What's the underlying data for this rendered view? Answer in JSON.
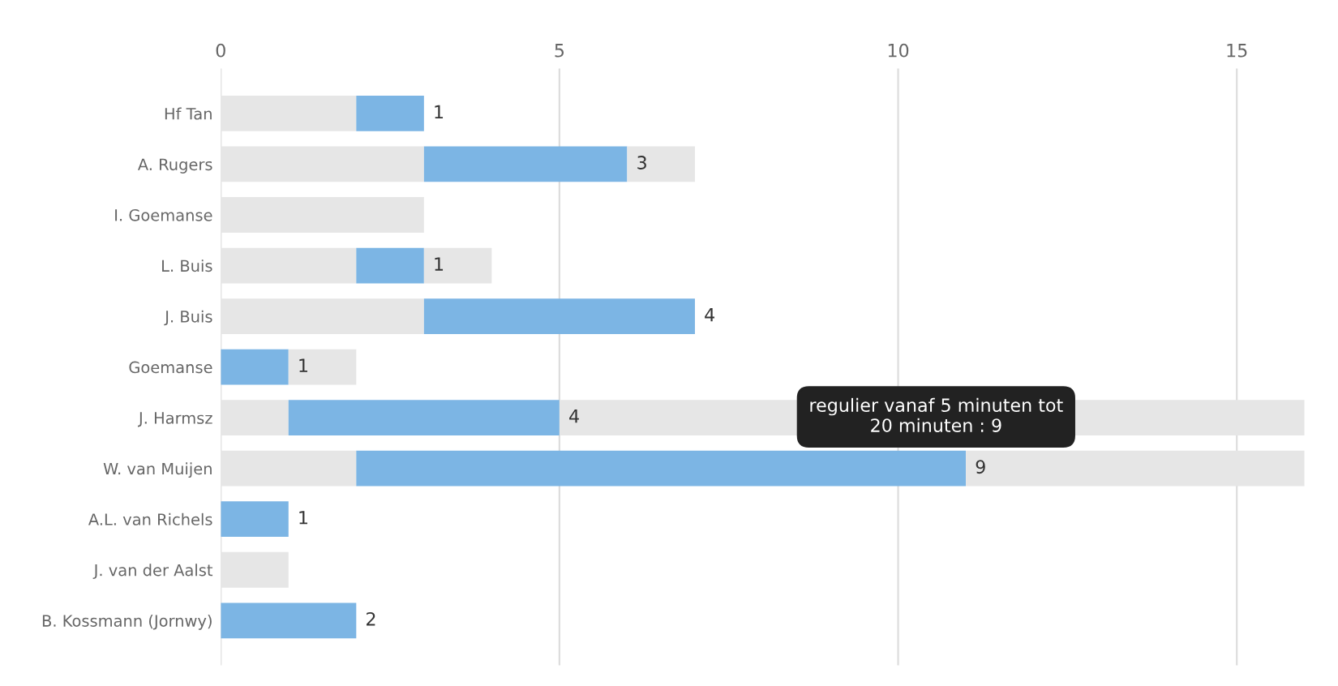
{
  "chart_data": {
    "type": "bar",
    "orientation": "horizontal",
    "stacked": true,
    "categories": [
      "Hf Tan",
      "A. Rugers",
      "I. Goemanse",
      "L. Buis",
      "J. Buis",
      "Goemanse",
      "J. Harmsz",
      "W. van Muijen",
      "A.L. van Richels",
      "J. van der Aalst",
      "B. Kossmann (Jornwy)"
    ],
    "series": [
      {
        "color": "#e6e6e6",
        "values": [
          2,
          3,
          3,
          2,
          3,
          0,
          1,
          2,
          0,
          1,
          0
        ]
      },
      {
        "color": "#7cb5e4",
        "values": [
          1,
          3,
          0,
          1,
          4,
          1,
          4,
          9,
          1,
          0,
          2
        ],
        "value_labels": [
          "1",
          "3",
          null,
          "1",
          "4",
          "1",
          "4",
          "9",
          "1",
          null,
          "2"
        ]
      },
      {
        "color": "#e6e6e6",
        "values": [
          0,
          1,
          0,
          1,
          0,
          1,
          11,
          5,
          0,
          0,
          0
        ]
      }
    ],
    "xlim": [
      0,
      16
    ],
    "xticks": [
      0,
      5,
      10,
      15
    ],
    "grid": "x",
    "legend": false,
    "annotations": [
      "regulier vanaf 5 minuten tot\n20 minuten : 9"
    ]
  }
}
